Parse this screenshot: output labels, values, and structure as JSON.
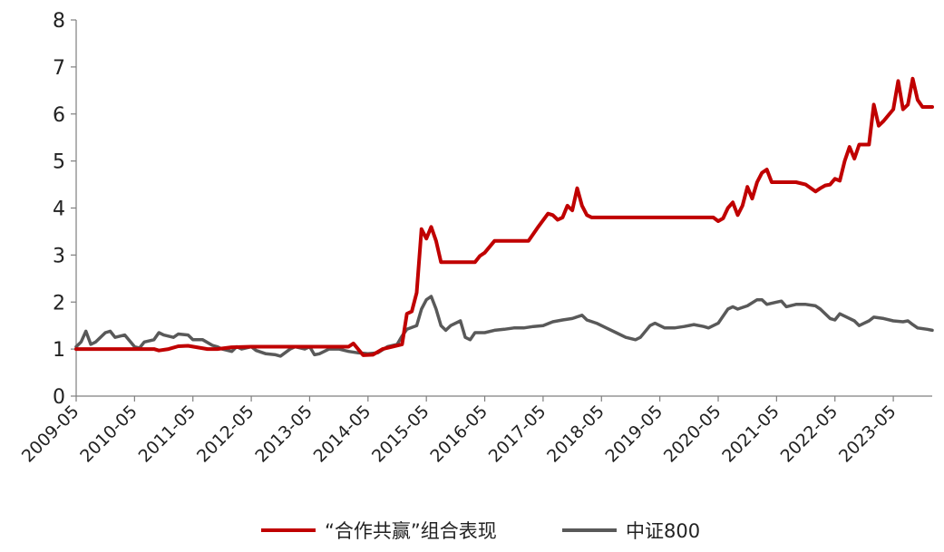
{
  "chart_data": {
    "type": "line",
    "title": "",
    "xlabel": "",
    "ylabel": "",
    "ylim": [
      0,
      8
    ],
    "yticks": [
      "0",
      "1",
      "2",
      "3",
      "4",
      "5",
      "6",
      "7",
      "8"
    ],
    "xticks": [
      "2009-05",
      "2010-05",
      "2011-05",
      "2012-05",
      "2013-05",
      "2014-05",
      "2015-05",
      "2016-05",
      "2017-05",
      "2018-05",
      "2019-05",
      "2020-05",
      "2021-05",
      "2022-05",
      "2023-05"
    ],
    "x_range": [
      "2009-05",
      "2024-01"
    ],
    "grid": false,
    "legend": "bottom",
    "series": [
      {
        "name": "“合作共赢”组合表现",
        "color": "#C00000",
        "points": [
          [
            "2009-05",
            1.0
          ],
          [
            "2009-08",
            1.0
          ],
          [
            "2009-12",
            1.0
          ],
          [
            "2010-05",
            1.0
          ],
          [
            "2010-09",
            1.0
          ],
          [
            "2010-10",
            0.97
          ],
          [
            "2010-12",
            1.0
          ],
          [
            "2011-02",
            1.06
          ],
          [
            "2011-04",
            1.07
          ],
          [
            "2011-08",
            1.0
          ],
          [
            "2011-10",
            1.0
          ],
          [
            "2012-01",
            1.04
          ],
          [
            "2012-05",
            1.05
          ],
          [
            "2012-10",
            1.05
          ],
          [
            "2013-05",
            1.05
          ],
          [
            "2013-10",
            1.05
          ],
          [
            "2014-01",
            1.05
          ],
          [
            "2014-02",
            1.12
          ],
          [
            "2014-04",
            0.87
          ],
          [
            "2014-06",
            0.88
          ],
          [
            "2014-08",
            1.0
          ],
          [
            "2014-10",
            1.05
          ],
          [
            "2014-12",
            1.1
          ],
          [
            "2015-01",
            1.75
          ],
          [
            "2015-02",
            1.8
          ],
          [
            "2015-03",
            2.2
          ],
          [
            "2015-04",
            3.55
          ],
          [
            "2015-05",
            3.35
          ],
          [
            "2015-06",
            3.6
          ],
          [
            "2015-07",
            3.3
          ],
          [
            "2015-08",
            2.85
          ],
          [
            "2015-10",
            2.85
          ],
          [
            "2016-01",
            2.85
          ],
          [
            "2016-03",
            2.85
          ],
          [
            "2016-04",
            2.98
          ],
          [
            "2016-05",
            3.05
          ],
          [
            "2016-07",
            3.3
          ],
          [
            "2016-10",
            3.3
          ],
          [
            "2016-12",
            3.3
          ],
          [
            "2017-02",
            3.3
          ],
          [
            "2017-04",
            3.6
          ],
          [
            "2017-06",
            3.88
          ],
          [
            "2017-07",
            3.85
          ],
          [
            "2017-08",
            3.75
          ],
          [
            "2017-09",
            3.8
          ],
          [
            "2017-10",
            4.05
          ],
          [
            "2017-11",
            3.95
          ],
          [
            "2017-12",
            4.42
          ],
          [
            "2018-01",
            4.05
          ],
          [
            "2018-02",
            3.85
          ],
          [
            "2018-03",
            3.8
          ],
          [
            "2018-06",
            3.8
          ],
          [
            "2018-10",
            3.8
          ],
          [
            "2019-03",
            3.8
          ],
          [
            "2019-08",
            3.8
          ],
          [
            "2020-01",
            3.8
          ],
          [
            "2020-04",
            3.8
          ],
          [
            "2020-05",
            3.72
          ],
          [
            "2020-06",
            3.78
          ],
          [
            "2020-07",
            4.0
          ],
          [
            "2020-08",
            4.12
          ],
          [
            "2020-09",
            3.85
          ],
          [
            "2020-10",
            4.05
          ],
          [
            "2020-11",
            4.45
          ],
          [
            "2020-12",
            4.2
          ],
          [
            "2021-01",
            4.55
          ],
          [
            "2021-02",
            4.75
          ],
          [
            "2021-03",
            4.82
          ],
          [
            "2021-04",
            4.55
          ],
          [
            "2021-06",
            4.55
          ],
          [
            "2021-09",
            4.55
          ],
          [
            "2021-11",
            4.5
          ],
          [
            "2022-01",
            4.35
          ],
          [
            "2022-02",
            4.42
          ],
          [
            "2022-03",
            4.48
          ],
          [
            "2022-04",
            4.5
          ],
          [
            "2022-05",
            4.62
          ],
          [
            "2022-06",
            4.58
          ],
          [
            "2022-07",
            5.0
          ],
          [
            "2022-08",
            5.3
          ],
          [
            "2022-09",
            5.05
          ],
          [
            "2022-10",
            5.35
          ],
          [
            "2022-11",
            5.35
          ],
          [
            "2022-12",
            5.35
          ],
          [
            "2023-01",
            6.2
          ],
          [
            "2023-02",
            5.75
          ],
          [
            "2023-03",
            5.85
          ],
          [
            "2023-05",
            6.1
          ],
          [
            "2023-06",
            6.7
          ],
          [
            "2023-07",
            6.1
          ],
          [
            "2023-08",
            6.2
          ],
          [
            "2023-09",
            6.75
          ],
          [
            "2023-10",
            6.3
          ],
          [
            "2023-11",
            6.15
          ],
          [
            "2024-01",
            6.15
          ]
        ]
      },
      {
        "name": "中证800",
        "color": "#595959",
        "points": [
          [
            "2009-05",
            1.05
          ],
          [
            "2009-06",
            1.15
          ],
          [
            "2009-07",
            1.38
          ],
          [
            "2009-08",
            1.1
          ],
          [
            "2009-09",
            1.15
          ],
          [
            "2009-11",
            1.35
          ],
          [
            "2009-12",
            1.38
          ],
          [
            "2010-01",
            1.25
          ],
          [
            "2010-03",
            1.3
          ],
          [
            "2010-05",
            1.05
          ],
          [
            "2010-06",
            1.02
          ],
          [
            "2010-07",
            1.15
          ],
          [
            "2010-09",
            1.2
          ],
          [
            "2010-10",
            1.35
          ],
          [
            "2010-11",
            1.3
          ],
          [
            "2011-01",
            1.25
          ],
          [
            "2011-02",
            1.32
          ],
          [
            "2011-04",
            1.3
          ],
          [
            "2011-05",
            1.2
          ],
          [
            "2011-07",
            1.2
          ],
          [
            "2011-09",
            1.08
          ],
          [
            "2011-10",
            1.05
          ],
          [
            "2011-11",
            1.0
          ],
          [
            "2012-01",
            0.95
          ],
          [
            "2012-02",
            1.05
          ],
          [
            "2012-03",
            1.0
          ],
          [
            "2012-05",
            1.05
          ],
          [
            "2012-06",
            0.97
          ],
          [
            "2012-08",
            0.9
          ],
          [
            "2012-10",
            0.88
          ],
          [
            "2012-11",
            0.85
          ],
          [
            "2013-01",
            1.0
          ],
          [
            "2013-02",
            1.05
          ],
          [
            "2013-04",
            1.0
          ],
          [
            "2013-05",
            1.05
          ],
          [
            "2013-06",
            0.88
          ],
          [
            "2013-07",
            0.9
          ],
          [
            "2013-09",
            1.0
          ],
          [
            "2013-11",
            1.0
          ],
          [
            "2014-01",
            0.95
          ],
          [
            "2014-03",
            0.92
          ],
          [
            "2014-05",
            0.9
          ],
          [
            "2014-07",
            0.92
          ],
          [
            "2014-09",
            1.05
          ],
          [
            "2014-11",
            1.1
          ],
          [
            "2014-12",
            1.28
          ],
          [
            "2015-01",
            1.42
          ],
          [
            "2015-03",
            1.5
          ],
          [
            "2015-04",
            1.85
          ],
          [
            "2015-05",
            2.05
          ],
          [
            "2015-06",
            2.12
          ],
          [
            "2015-07",
            1.85
          ],
          [
            "2015-08",
            1.5
          ],
          [
            "2015-09",
            1.4
          ],
          [
            "2015-10",
            1.5
          ],
          [
            "2015-12",
            1.6
          ],
          [
            "2016-01",
            1.25
          ],
          [
            "2016-02",
            1.2
          ],
          [
            "2016-03",
            1.35
          ],
          [
            "2016-05",
            1.35
          ],
          [
            "2016-07",
            1.4
          ],
          [
            "2016-09",
            1.42
          ],
          [
            "2016-11",
            1.45
          ],
          [
            "2017-01",
            1.45
          ],
          [
            "2017-03",
            1.48
          ],
          [
            "2017-05",
            1.5
          ],
          [
            "2017-07",
            1.58
          ],
          [
            "2017-09",
            1.62
          ],
          [
            "2017-11",
            1.65
          ],
          [
            "2018-01",
            1.72
          ],
          [
            "2018-02",
            1.62
          ],
          [
            "2018-04",
            1.55
          ],
          [
            "2018-06",
            1.45
          ],
          [
            "2018-08",
            1.35
          ],
          [
            "2018-10",
            1.25
          ],
          [
            "2018-12",
            1.2
          ],
          [
            "2019-01",
            1.25
          ],
          [
            "2019-03",
            1.5
          ],
          [
            "2019-04",
            1.55
          ],
          [
            "2019-06",
            1.45
          ],
          [
            "2019-08",
            1.45
          ],
          [
            "2019-10",
            1.48
          ],
          [
            "2019-12",
            1.52
          ],
          [
            "2020-02",
            1.48
          ],
          [
            "2020-03",
            1.45
          ],
          [
            "2020-05",
            1.55
          ],
          [
            "2020-07",
            1.85
          ],
          [
            "2020-08",
            1.9
          ],
          [
            "2020-09",
            1.85
          ],
          [
            "2020-11",
            1.92
          ],
          [
            "2021-01",
            2.05
          ],
          [
            "2021-02",
            2.05
          ],
          [
            "2021-03",
            1.95
          ],
          [
            "2021-05",
            2.0
          ],
          [
            "2021-06",
            2.02
          ],
          [
            "2021-07",
            1.9
          ],
          [
            "2021-09",
            1.95
          ],
          [
            "2021-11",
            1.95
          ],
          [
            "2022-01",
            1.92
          ],
          [
            "2022-02",
            1.85
          ],
          [
            "2022-04",
            1.65
          ],
          [
            "2022-05",
            1.62
          ],
          [
            "2022-06",
            1.75
          ],
          [
            "2022-07",
            1.7
          ],
          [
            "2022-09",
            1.6
          ],
          [
            "2022-10",
            1.5
          ],
          [
            "2022-11",
            1.55
          ],
          [
            "2022-12",
            1.6
          ],
          [
            "2023-01",
            1.68
          ],
          [
            "2023-03",
            1.65
          ],
          [
            "2023-05",
            1.6
          ],
          [
            "2023-07",
            1.58
          ],
          [
            "2023-08",
            1.6
          ],
          [
            "2023-09",
            1.52
          ],
          [
            "2023-10",
            1.45
          ],
          [
            "2023-12",
            1.42
          ],
          [
            "2024-01",
            1.4
          ]
        ]
      }
    ]
  }
}
